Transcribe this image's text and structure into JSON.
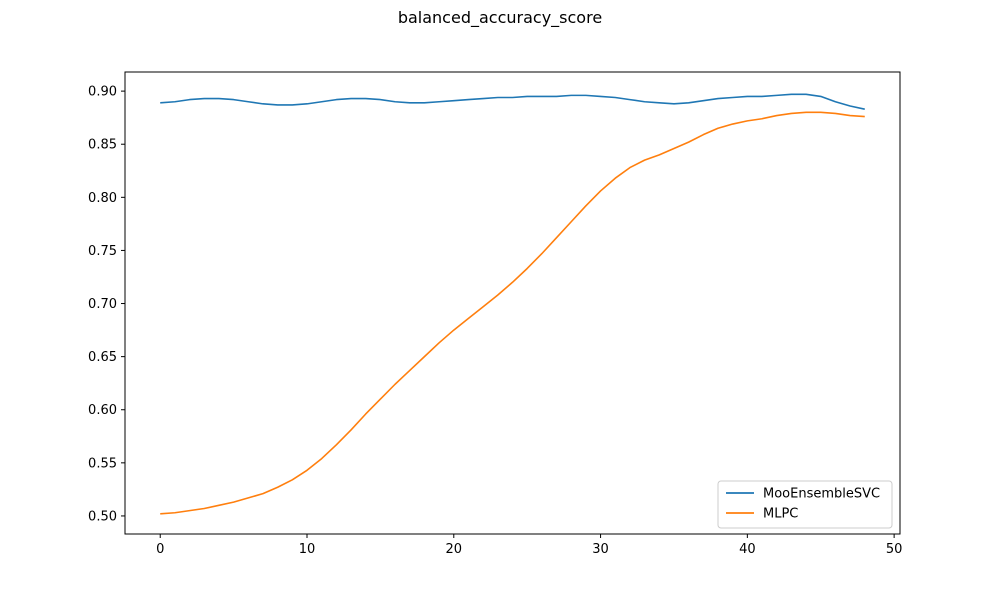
{
  "chart_data": {
    "type": "line",
    "title": "balanced_accuracy_score",
    "xlabel": "",
    "ylabel": "",
    "xlim": [
      -2.4,
      50.4
    ],
    "ylim": [
      0.483,
      0.918
    ],
    "xticks": [
      0,
      10,
      20,
      30,
      40,
      50
    ],
    "yticks": [
      0.5,
      0.55,
      0.6,
      0.65,
      0.7,
      0.75,
      0.8,
      0.85,
      0.9
    ],
    "ytick_labels": [
      "0.50",
      "0.55",
      "0.60",
      "0.65",
      "0.70",
      "0.75",
      "0.80",
      "0.85",
      "0.90"
    ],
    "grid": false,
    "legend_position": "lower-right",
    "x": [
      0,
      1,
      2,
      3,
      4,
      5,
      6,
      7,
      8,
      9,
      10,
      11,
      12,
      13,
      14,
      15,
      16,
      17,
      18,
      19,
      20,
      21,
      22,
      23,
      24,
      25,
      26,
      27,
      28,
      29,
      30,
      31,
      32,
      33,
      34,
      35,
      36,
      37,
      38,
      39,
      40,
      41,
      42,
      43,
      44,
      45,
      46,
      47,
      48
    ],
    "series": [
      {
        "name": "MooEnsembleSVC",
        "color": "#1f77b4",
        "values": [
          0.889,
          0.89,
          0.892,
          0.893,
          0.893,
          0.892,
          0.89,
          0.888,
          0.887,
          0.887,
          0.888,
          0.89,
          0.892,
          0.893,
          0.893,
          0.892,
          0.89,
          0.889,
          0.889,
          0.89,
          0.891,
          0.892,
          0.893,
          0.894,
          0.894,
          0.895,
          0.895,
          0.895,
          0.896,
          0.896,
          0.895,
          0.894,
          0.892,
          0.89,
          0.889,
          0.888,
          0.889,
          0.891,
          0.893,
          0.894,
          0.895,
          0.895,
          0.896,
          0.897,
          0.897,
          0.895,
          0.89,
          0.886,
          0.883
        ]
      },
      {
        "name": "MLPC",
        "color": "#ff7f0e",
        "values": [
          0.502,
          0.503,
          0.505,
          0.507,
          0.51,
          0.513,
          0.517,
          0.521,
          0.527,
          0.534,
          0.543,
          0.554,
          0.567,
          0.581,
          0.596,
          0.61,
          0.624,
          0.637,
          0.65,
          0.663,
          0.675,
          0.686,
          0.697,
          0.708,
          0.72,
          0.733,
          0.747,
          0.762,
          0.777,
          0.792,
          0.806,
          0.818,
          0.828,
          0.835,
          0.84,
          0.846,
          0.852,
          0.859,
          0.865,
          0.869,
          0.872,
          0.874,
          0.877,
          0.879,
          0.88,
          0.88,
          0.879,
          0.877,
          0.876
        ]
      }
    ]
  }
}
